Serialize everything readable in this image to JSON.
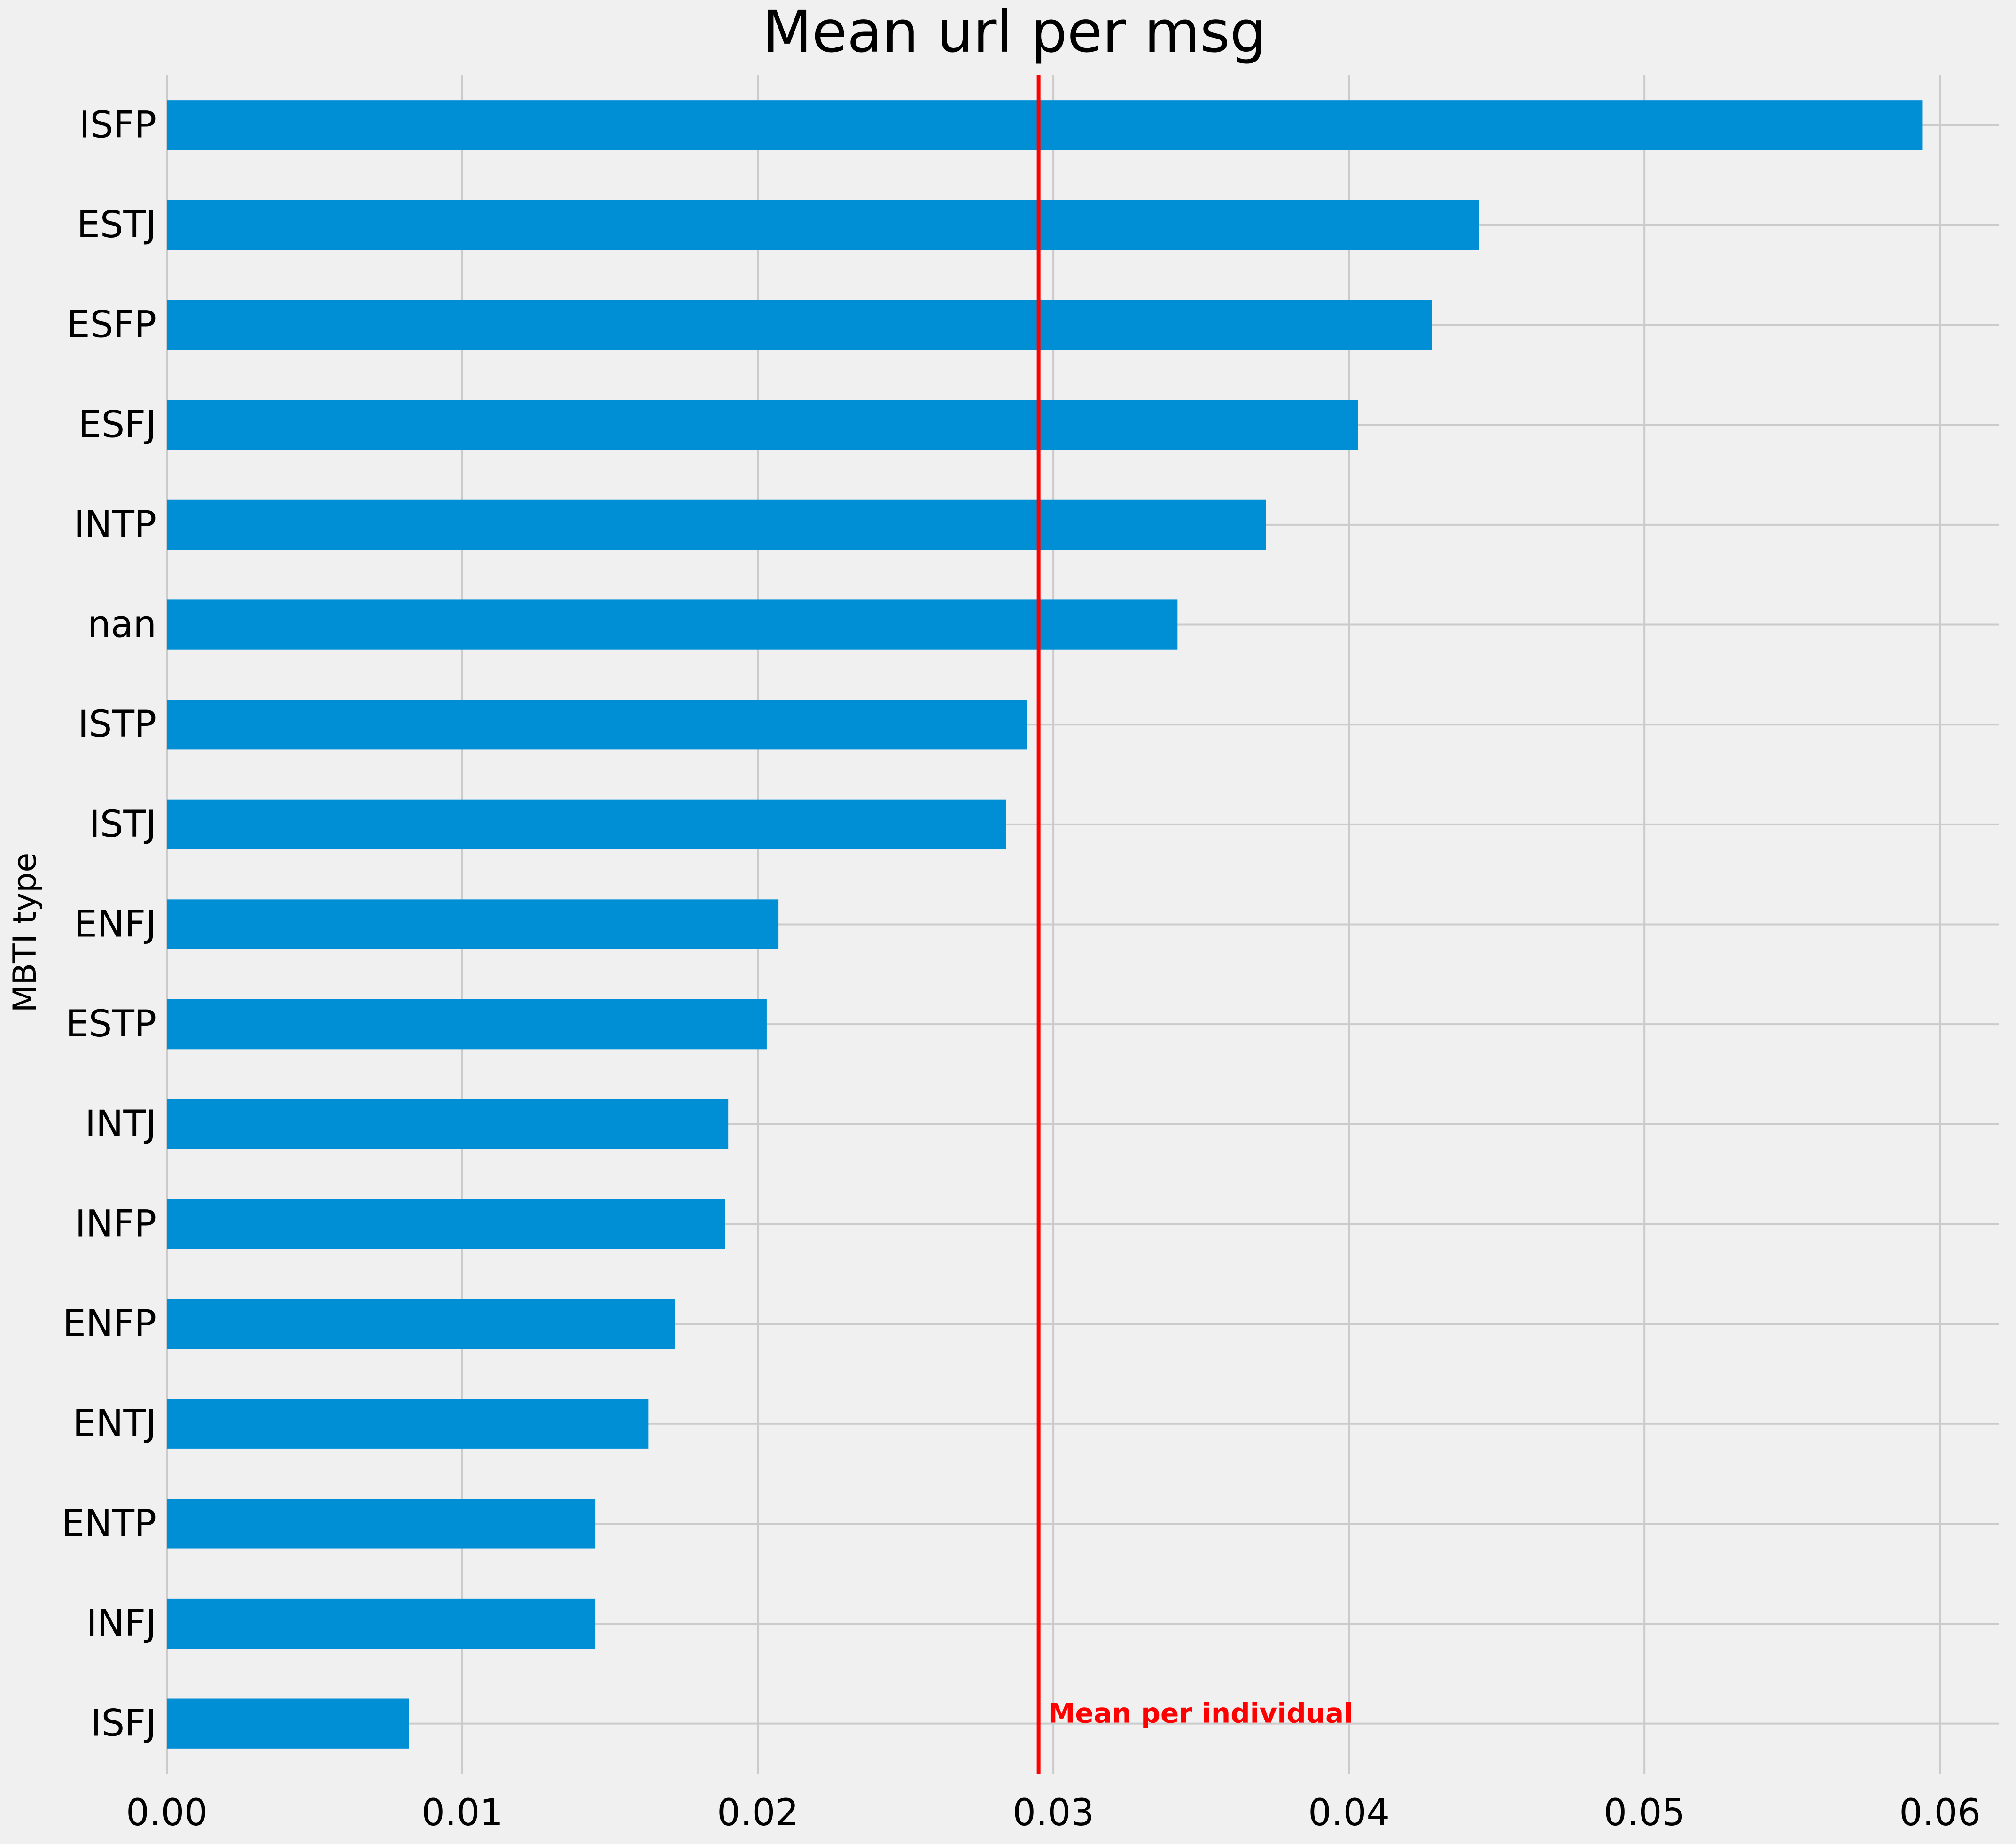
{
  "colors": {
    "background": "#f0f0f0",
    "bar": "#008fd5",
    "grid": "#cbcbcb",
    "mean_line": "#ff0000",
    "text": "#000000"
  },
  "chart_data": {
    "type": "bar",
    "orientation": "horizontal",
    "title": "Mean url per msg",
    "xlabel": "",
    "ylabel": "MBTI type",
    "categories": [
      "ISFP",
      "ESTJ",
      "ESFP",
      "ESFJ",
      "INTP",
      "nan",
      "ISTP",
      "ISTJ",
      "ENFJ",
      "ESTP",
      "INTJ",
      "INFP",
      "ENFP",
      "ENTJ",
      "ENTP",
      "INFJ",
      "ISFJ"
    ],
    "values": [
      0.0594,
      0.0444,
      0.0428,
      0.0403,
      0.0372,
      0.0342,
      0.0291,
      0.0284,
      0.0207,
      0.0203,
      0.019,
      0.0189,
      0.0172,
      0.0163,
      0.0145,
      0.0145,
      0.0082
    ],
    "xlim": [
      0,
      0.062
    ],
    "xticks": [
      0.0,
      0.01,
      0.02,
      0.03,
      0.04,
      0.05,
      0.06
    ],
    "xtick_labels": [
      "0.00",
      "0.01",
      "0.02",
      "0.03",
      "0.04",
      "0.05",
      "0.06"
    ],
    "grid": true,
    "legend": "none",
    "reference_line": {
      "value": 0.0295,
      "label": "Mean per individual"
    }
  }
}
